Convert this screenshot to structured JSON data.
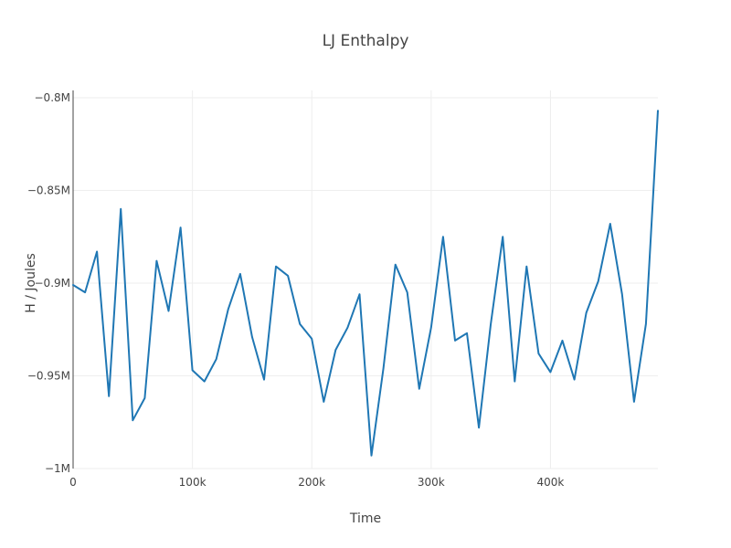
{
  "chart_data": {
    "type": "line",
    "title": "LJ Enthalpy",
    "xlabel": "Time",
    "ylabel": "H / Joules",
    "xlim": [
      0,
      490000
    ],
    "ylim": [
      -1000000,
      -800000
    ],
    "x_ticks": [
      {
        "value": 0,
        "label": "0"
      },
      {
        "value": 100000,
        "label": "100k"
      },
      {
        "value": 200000,
        "label": "200k"
      },
      {
        "value": 300000,
        "label": "300k"
      },
      {
        "value": 400000,
        "label": "400k"
      }
    ],
    "y_ticks": [
      {
        "value": -800000,
        "label": "−0.8M"
      },
      {
        "value": -850000,
        "label": "−0.85M"
      },
      {
        "value": -900000,
        "label": "−0.9M"
      },
      {
        "value": -950000,
        "label": "−0.95M"
      },
      {
        "value": -1000000,
        "label": "−1M"
      }
    ],
    "grid": true,
    "legend": "none",
    "colors": {
      "series": "#1f77b4",
      "grid": "#eeeeee",
      "axis": "#444444",
      "text": "#444444"
    },
    "series": [
      {
        "x": [
          0,
          10000,
          20000,
          30000,
          40000,
          50000,
          60000,
          70000,
          80000,
          90000,
          100000,
          110000,
          120000,
          130000,
          140000,
          150000,
          160000,
          170000,
          180000,
          190000,
          200000,
          210000,
          220000,
          230000,
          240000,
          250000,
          260000,
          270000,
          280000,
          290000,
          300000,
          310000,
          320000,
          330000,
          340000,
          350000,
          360000,
          370000,
          380000,
          390000,
          400000,
          410000,
          420000,
          430000,
          440000,
          450000,
          460000,
          470000,
          480000,
          490000
        ],
        "y": [
          -901000,
          -905000,
          -883000,
          -961000,
          -860000,
          -974000,
          -962000,
          -888000,
          -915000,
          -870000,
          -947000,
          -953000,
          -941000,
          -914000,
          -895000,
          -929000,
          -952000,
          -891000,
          -896000,
          -922000,
          -930000,
          -964000,
          -936000,
          -924000,
          -906000,
          -993000,
          -946000,
          -890000,
          -905000,
          -957000,
          -924000,
          -875000,
          -931000,
          -927000,
          -978000,
          -922000,
          -875000,
          -953000,
          -891000,
          -938000,
          -948000,
          -931000,
          -952000,
          -916000,
          -899000,
          -868000,
          -906000,
          -964000,
          -922000,
          -807000
        ]
      }
    ]
  }
}
